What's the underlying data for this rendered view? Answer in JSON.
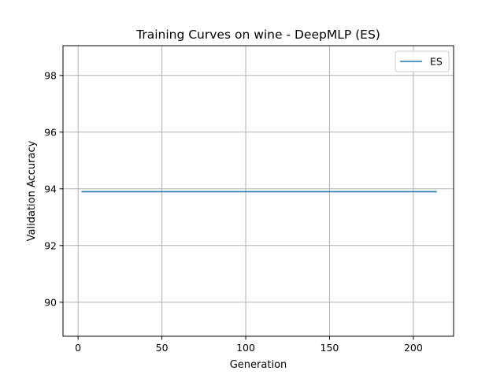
{
  "chart_data": {
    "type": "line",
    "title": "Training Curves on wine - DeepMLP (ES)",
    "xlabel": "Generation",
    "ylabel": "Validation Accuracy",
    "xlim": [
      -9,
      224
    ],
    "ylim": [
      88.8,
      99.05
    ],
    "xticks": [
      0,
      50,
      100,
      150,
      200
    ],
    "yticks": [
      90,
      92,
      94,
      96,
      98
    ],
    "grid": true,
    "legend_position": "upper-right",
    "series": [
      {
        "name": "ES",
        "color": "#1f77b4",
        "x": [
          2,
          214
        ],
        "y": [
          93.9,
          93.9
        ]
      }
    ]
  }
}
